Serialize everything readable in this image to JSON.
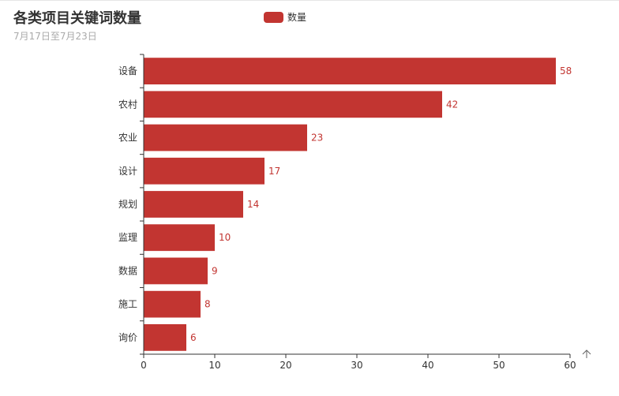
{
  "chart_data": {
    "type": "bar",
    "orientation": "horizontal",
    "title": "各类项目关键词数量",
    "subtitle": "7月17日至7月23日",
    "categories": [
      "设备",
      "农村",
      "农业",
      "设计",
      "规划",
      "监理",
      "数据",
      "施工",
      "询价"
    ],
    "series": [
      {
        "name": "数量",
        "values": [
          58,
          42,
          23,
          17,
          14,
          10,
          9,
          8,
          6
        ]
      }
    ],
    "xlim": [
      0,
      60
    ],
    "x_ticks": [
      0,
      10,
      20,
      30,
      40,
      50,
      60
    ],
    "legend_position": "top",
    "grid": false,
    "show_data_labels": true
  },
  "colors": {
    "bar": "#c23531",
    "axis": "#333333",
    "title": "#333333",
    "subtitle": "#aaaaaa"
  },
  "toolbox": {
    "icon": "arrow-up-icon"
  }
}
